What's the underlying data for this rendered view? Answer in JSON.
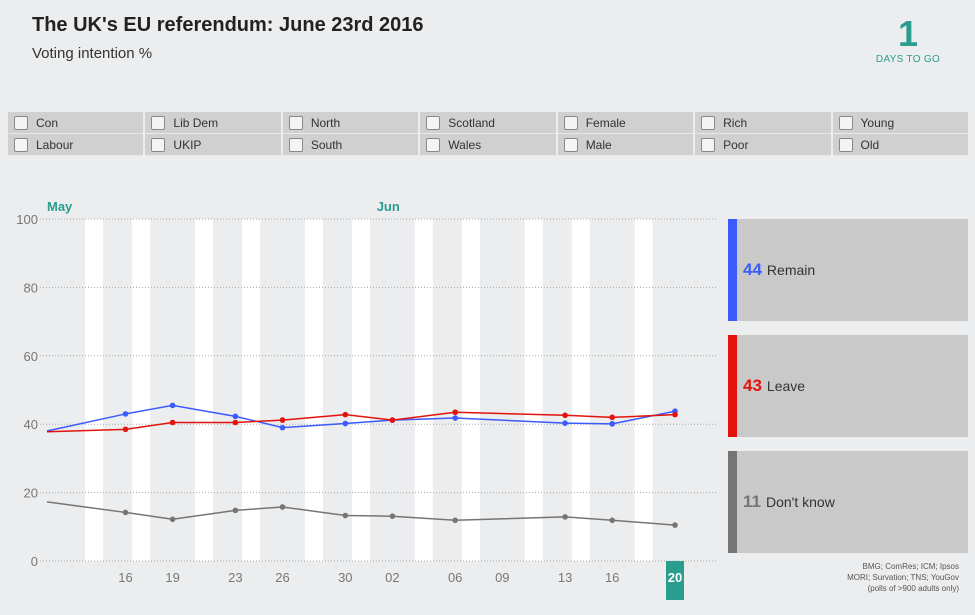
{
  "header": {
    "title": "The UK's EU referendum: June 23rd 2016",
    "subtitle": "Voting intention %"
  },
  "countdown": {
    "number": "1",
    "label": "DAYS TO GO"
  },
  "filters": [
    [
      "Con",
      "Lib Dem",
      "North",
      "Scotland",
      "Female",
      "Rich",
      "Young"
    ],
    [
      "Labour",
      "UKIP",
      "South",
      "Wales",
      "Male",
      "Poor",
      "Old"
    ]
  ],
  "chart_data": {
    "type": "line",
    "title": "The UK's EU referendum: June 23rd 2016",
    "ylabel": "Voting intention %",
    "ylim": [
      0,
      100
    ],
    "yticks": [
      0,
      20,
      40,
      60,
      80,
      100
    ],
    "xlim": [
      11,
      51
    ],
    "months": [
      {
        "label": "May",
        "day": 11
      },
      {
        "label": "Jun",
        "day": 32
      }
    ],
    "xticks": [
      {
        "label": "16",
        "day": 16
      },
      {
        "label": "19",
        "day": 19
      },
      {
        "label": "23",
        "day": 23
      },
      {
        "label": "26",
        "day": 26
      },
      {
        "label": "30",
        "day": 30
      },
      {
        "label": "02",
        "day": 33
      },
      {
        "label": "06",
        "day": 37
      },
      {
        "label": "09",
        "day": 40
      },
      {
        "label": "13",
        "day": 44
      },
      {
        "label": "16",
        "day": 47
      },
      {
        "label": "20",
        "day": 51,
        "highlight": true
      }
    ],
    "week_bands": [
      14,
      17,
      21,
      24,
      28,
      31,
      35,
      38,
      42,
      45,
      49
    ],
    "series": [
      {
        "name": "Remain",
        "color": "#3b5bff",
        "points": [
          [
            11,
            38
          ],
          [
            16,
            43
          ],
          [
            19,
            45.5
          ],
          [
            23,
            42.3
          ],
          [
            26,
            39
          ],
          [
            30,
            40.2
          ],
          [
            33,
            41.2
          ],
          [
            37,
            41.8
          ],
          [
            44,
            40.3
          ],
          [
            47,
            40.1
          ],
          [
            51,
            43.8
          ]
        ]
      },
      {
        "name": "Leave",
        "color": "#e3120b",
        "points": [
          [
            11,
            37.8
          ],
          [
            16,
            38.5
          ],
          [
            19,
            40.5
          ],
          [
            23,
            40.5
          ],
          [
            26,
            41.2
          ],
          [
            30,
            42.8
          ],
          [
            33,
            41.2
          ],
          [
            37,
            43.5
          ],
          [
            44,
            42.6
          ],
          [
            47,
            42
          ],
          [
            51,
            42.8
          ]
        ]
      },
      {
        "name": "Don't know",
        "color": "#757575",
        "points": [
          [
            11,
            17.3
          ],
          [
            16,
            14.2
          ],
          [
            19,
            12.2
          ],
          [
            23,
            14.8
          ],
          [
            26,
            15.8
          ],
          [
            30,
            13.3
          ],
          [
            33,
            13.1
          ],
          [
            37,
            11.9
          ],
          [
            44,
            12.9
          ],
          [
            47,
            11.9
          ],
          [
            51,
            10.5
          ]
        ]
      }
    ]
  },
  "legend": [
    {
      "value": "44",
      "label": "Remain",
      "color": "#3b5bff"
    },
    {
      "value": "43",
      "label": "Leave",
      "color": "#e3120b"
    },
    {
      "value": "11",
      "label": "Don't know",
      "color": "#757575"
    }
  ],
  "source": {
    "line1": "BMG; ComRes; ICM; Ipsos",
    "line2": "MORI; Survation; TNS; YouGov",
    "line3": "(polls of >900 adults only)"
  }
}
